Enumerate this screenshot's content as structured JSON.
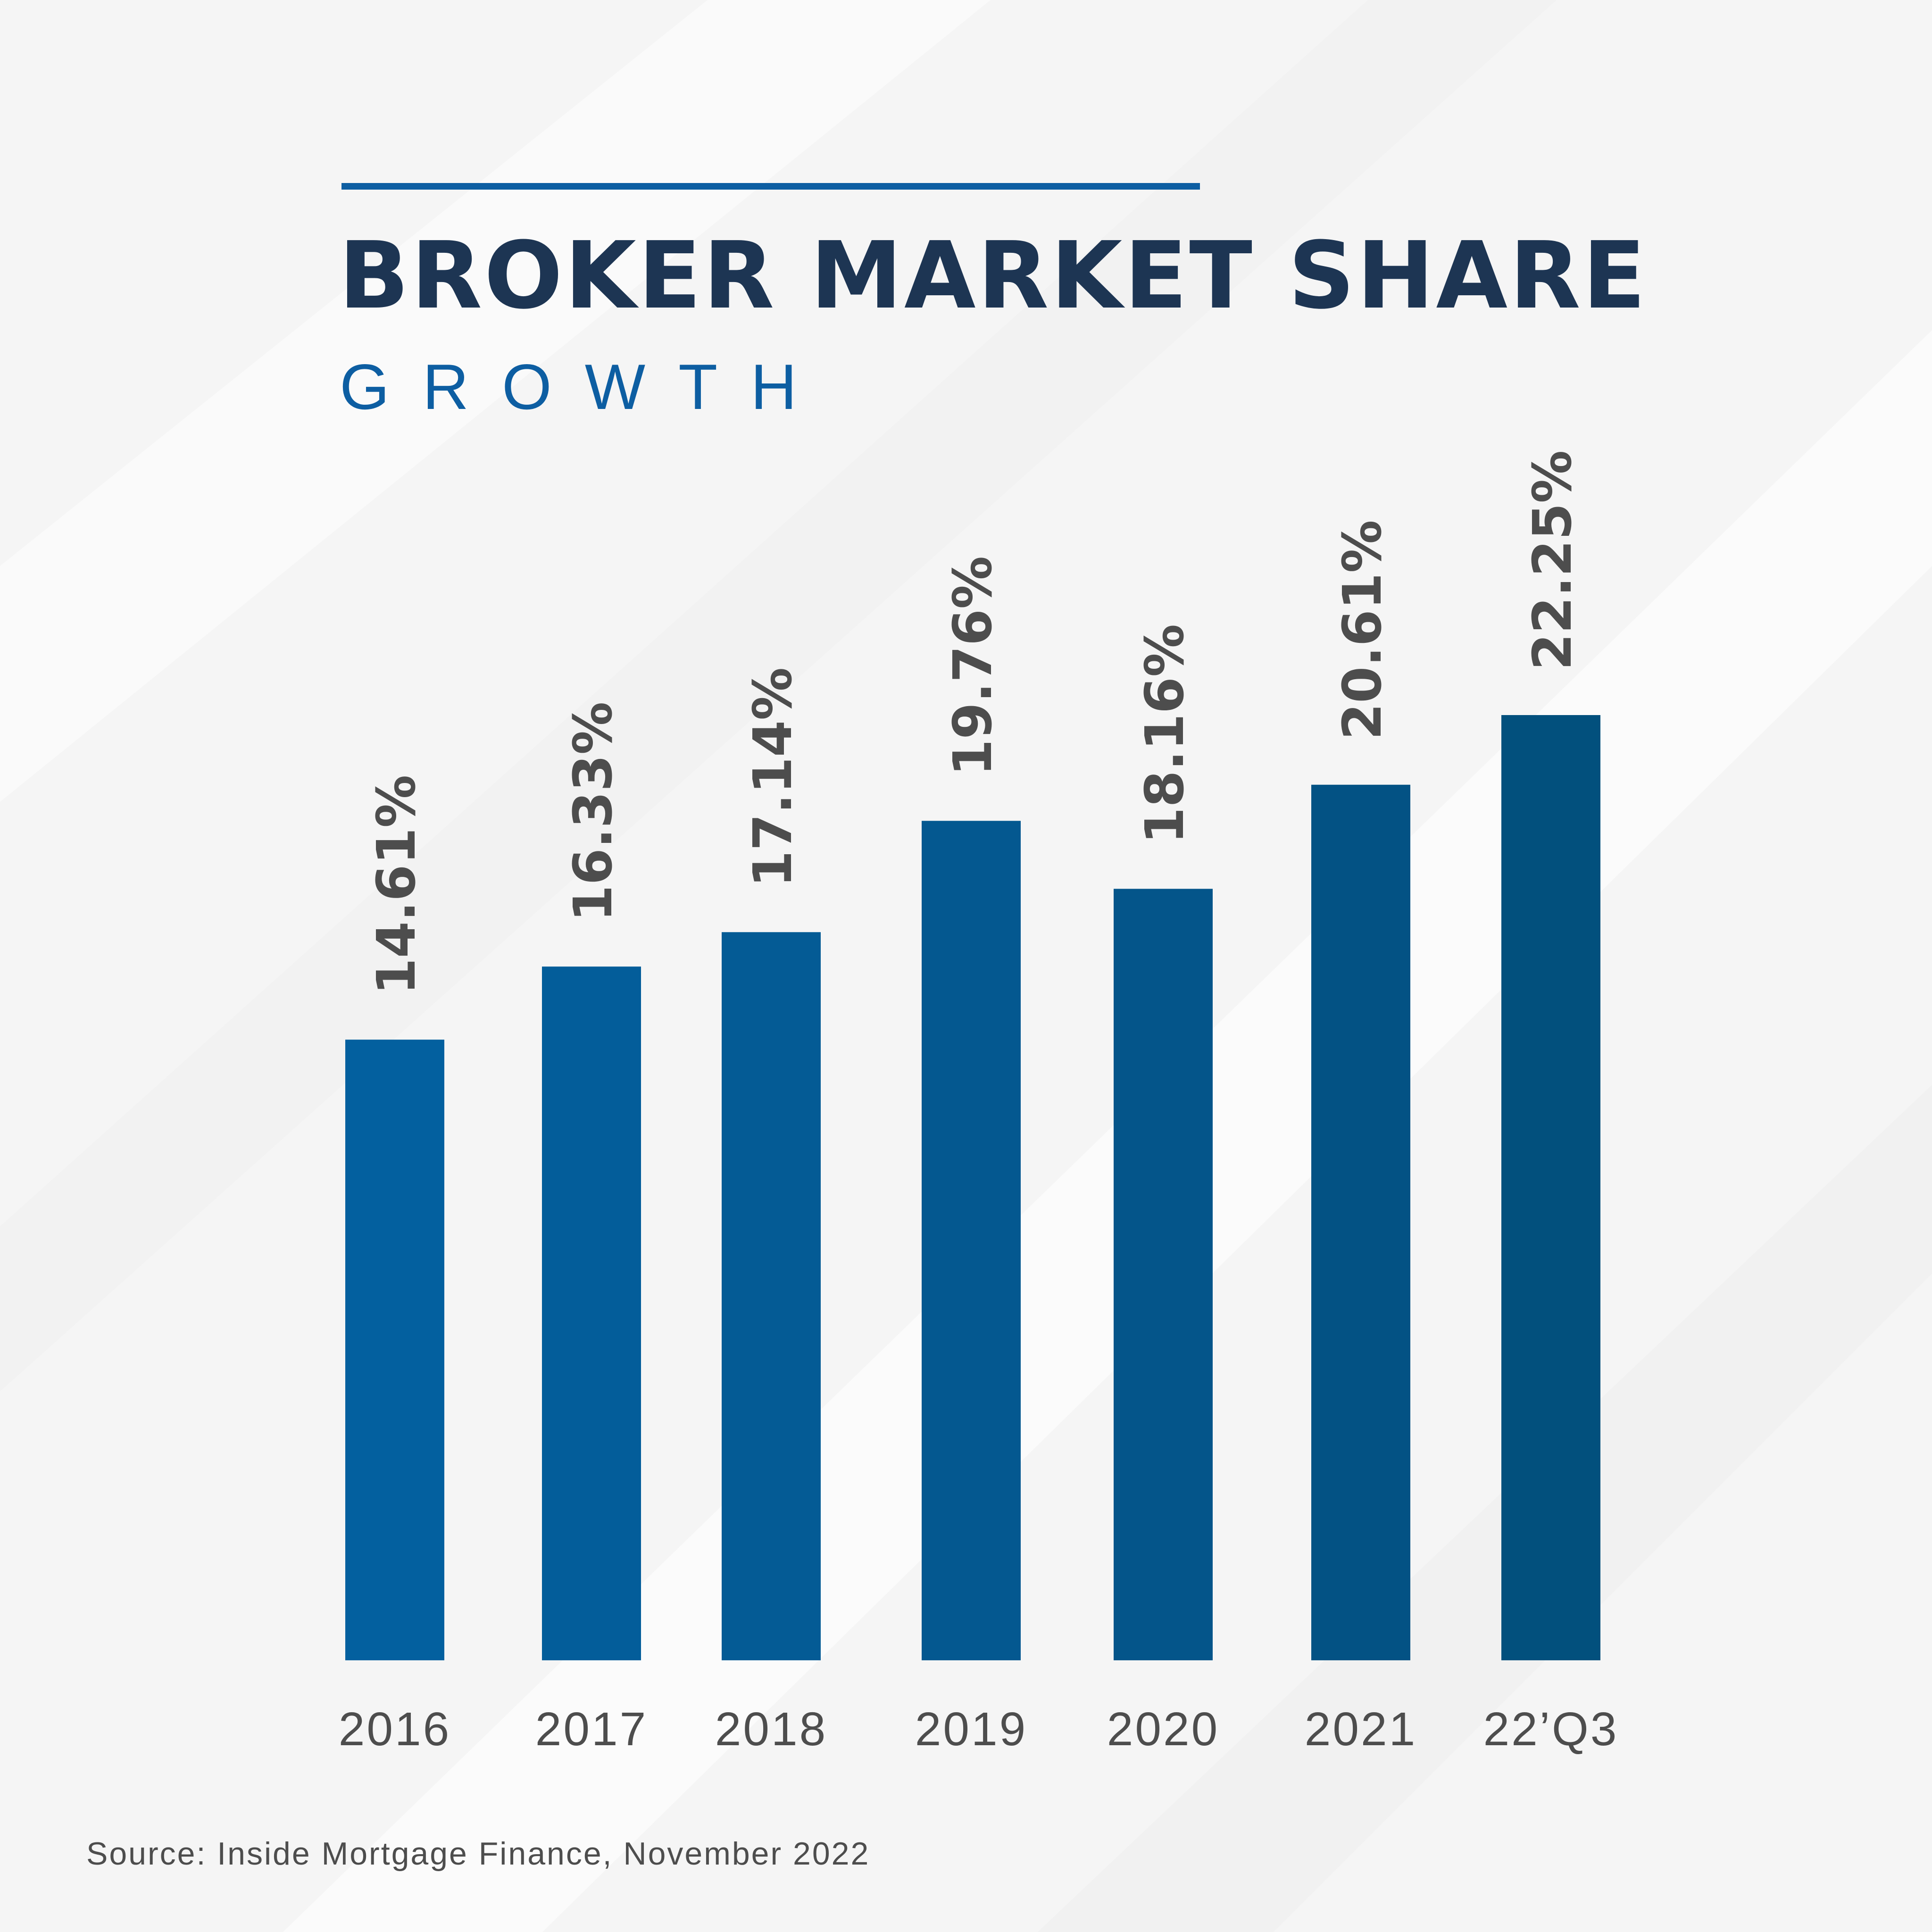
{
  "chart_data": {
    "type": "bar",
    "title": "BROKER MARKET SHARE",
    "subtitle": "GROWTH",
    "categories": [
      "2016",
      "2017",
      "2018",
      "2019",
      "2020",
      "2021",
      "22’Q3"
    ],
    "values": [
      14.61,
      16.33,
      17.14,
      19.76,
      18.16,
      20.61,
      22.25
    ],
    "data_labels": [
      "14.61%",
      "16.33%",
      "17.14%",
      "19.76%",
      "18.16%",
      "20.61%",
      "22.25%"
    ],
    "xlabel": "",
    "ylabel": "",
    "grid": false,
    "legend": "none",
    "colors": [
      "#03609f",
      "#035d9a",
      "#045b95",
      "#045890",
      "#04558a",
      "#035284",
      "#02507d"
    ],
    "label_color": "#4d4d4d"
  },
  "header": {
    "accent_color": "#0d5ea2",
    "title_color": "#1d3553"
  },
  "footer": {
    "source": "Source: Inside Mortgage Finance, November 2022"
  }
}
